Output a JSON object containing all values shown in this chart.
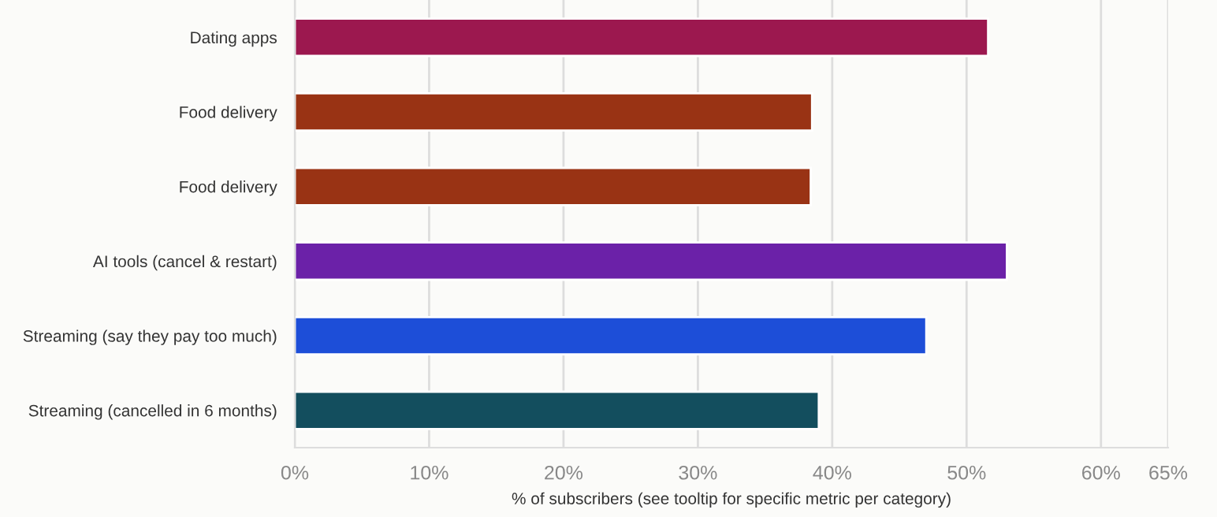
{
  "chart_data": {
    "type": "bar",
    "orientation": "horizontal",
    "categories": [
      "Dating apps",
      "Food delivery",
      "Food delivery",
      "AI tools (cancel & restart)",
      "Streaming (say they pay too much)",
      "Streaming (cancelled in 6 months)"
    ],
    "values": [
      51.6,
      38.5,
      38.4,
      53,
      47,
      39
    ],
    "colors": [
      "#9c184f",
      "#993314",
      "#993314",
      "#6b21a8",
      "#1d4ed8",
      "#134e5e"
    ],
    "xlabel": "% of subscribers (see tooltip for specific metric per category)",
    "xlim": [
      0,
      65
    ],
    "xticks": [
      {
        "value": 0,
        "label": "0%"
      },
      {
        "value": 10,
        "label": "10%"
      },
      {
        "value": 20,
        "label": "20%"
      },
      {
        "value": 30,
        "label": "30%"
      },
      {
        "value": 40,
        "label": "40%"
      },
      {
        "value": 50,
        "label": "50%"
      },
      {
        "value": 60,
        "label": "60%"
      },
      {
        "value": 65,
        "label": "65%"
      }
    ],
    "grid": "x",
    "legend": false
  }
}
